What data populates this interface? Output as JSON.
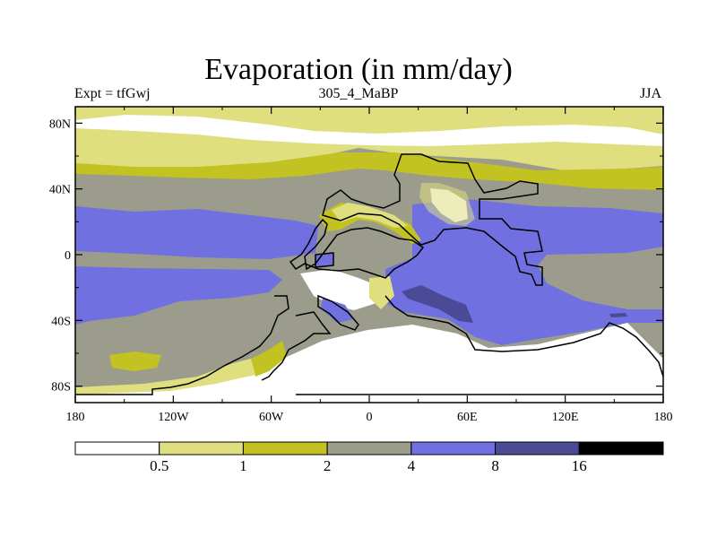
{
  "title": "Evaporation (in mm/day)",
  "left_string": "Expt = tfGwj",
  "center_string": "305_4_MaBP",
  "right_string": "JJA",
  "lon_ticks": [
    {
      "value": -180,
      "label": "180"
    },
    {
      "value": -120,
      "label": "120W"
    },
    {
      "value": -60,
      "label": "60W"
    },
    {
      "value": 0,
      "label": "0"
    },
    {
      "value": 60,
      "label": "60E"
    },
    {
      "value": 120,
      "label": "120E"
    },
    {
      "value": 180,
      "label": "180"
    }
  ],
  "lat_ticks": [
    {
      "value": 80,
      "label": "80N"
    },
    {
      "value": 40,
      "label": "40N"
    },
    {
      "value": 0,
      "label": "0"
    },
    {
      "value": -40,
      "label": "40S"
    },
    {
      "value": -80,
      "label": "80S"
    }
  ],
  "colors": {
    "c0": "#ffffff",
    "c1": "#dfdf80",
    "c2": "#c2c222",
    "c3": "#9c9c8c",
    "c4": "#7070e0",
    "c5": "#4a4a96",
    "c6": "#000000"
  },
  "colorbar": {
    "colors": [
      "#ffffff",
      "#dfdf80",
      "#c2c222",
      "#9c9c8c",
      "#7070e0",
      "#4a4a96",
      "#000000"
    ],
    "labels": [
      "0.5",
      "1",
      "2",
      "4",
      "8",
      "16"
    ]
  }
}
